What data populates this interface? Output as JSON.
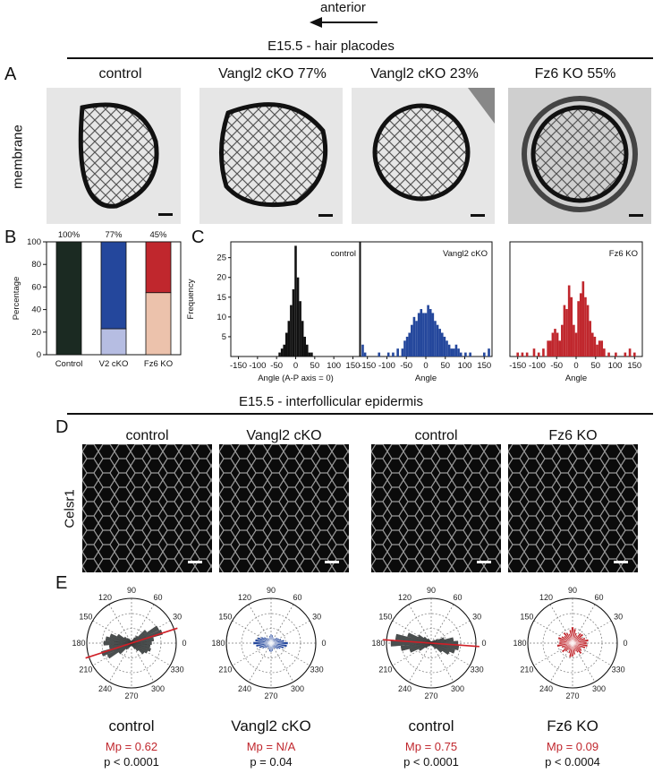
{
  "arrow_label": "anterior",
  "section1_title": "E15.5 - hair placodes",
  "section2_title": "E15.5 - interfollicular epidermis",
  "panel_letters": {
    "A": "A",
    "B": "B",
    "C": "C",
    "D": "D",
    "E": "E"
  },
  "panelA": {
    "row_label": "membrane",
    "titles": [
      "control",
      "Vangl2 cKO 77%",
      "Vangl2 cKO 23%",
      "Fz6 KO 55%"
    ]
  },
  "panelD": {
    "row_label": "Celsr1",
    "titles": [
      "control",
      "Vangl2 cKO",
      "control",
      "Fz6 KO"
    ]
  },
  "panelE": {
    "captions": [
      "control",
      "Vangl2 cKO",
      "control",
      "Fz6 KO"
    ],
    "mp": [
      "Mp = 0.62",
      "Mp = N/A",
      "Mp = 0.75",
      "Mp = 0.09"
    ],
    "p": [
      "p < 0.0001",
      "p = 0.04",
      "p < 0.0001",
      "p < 0.0004"
    ],
    "angle_labels": [
      "90",
      "60",
      "30",
      "0",
      "330",
      "300",
      "270",
      "240",
      "210",
      "180",
      "150",
      "120"
    ]
  },
  "colors": {
    "black": "#1b2a22",
    "blue": "#24479c",
    "light_blue": "#b6bde2",
    "red": "#c0272d",
    "peach": "#ecc2ac",
    "gray_petal": "#4a4f4f",
    "mp_red": "#c0272d"
  },
  "chart_data": [
    {
      "type": "bar",
      "panel": "B",
      "ylabel": "Percentage",
      "ylim": [
        0,
        100
      ],
      "yticks": [
        0,
        20,
        40,
        60,
        80,
        100
      ],
      "categories": [
        "Control",
        "V2 cKO",
        "Fz6 KO"
      ],
      "top_labels": [
        "100%",
        "77%",
        "45%"
      ],
      "stacks": [
        [
          {
            "value": 100,
            "color": "#1b2a22"
          }
        ],
        [
          {
            "value": 23,
            "color": "#b6bde2"
          },
          {
            "value": 77,
            "color": "#24479c"
          }
        ],
        [
          {
            "value": 55,
            "color": "#ecc2ac"
          },
          {
            "value": 45,
            "color": "#c0272d"
          }
        ]
      ]
    },
    {
      "type": "bar",
      "panel": "C",
      "title": "control",
      "ylabel": "Frequency",
      "xlabel": "Angle (A-P axis = 0)",
      "xlim": [
        -170,
        170
      ],
      "ylim": [
        0,
        29
      ],
      "xticks": [
        -150,
        -100,
        -50,
        0,
        50,
        100,
        150
      ],
      "yticks": [
        5,
        10,
        15,
        20,
        25
      ],
      "color": "#111111",
      "bin_width": 6,
      "x": [
        -42,
        -36,
        -30,
        -24,
        -18,
        -12,
        -6,
        0,
        6,
        12,
        18,
        24,
        30,
        36,
        42
      ],
      "values": [
        1,
        2,
        3,
        6,
        9,
        13,
        17,
        28,
        20,
        14,
        9,
        5,
        3,
        1,
        1
      ]
    },
    {
      "type": "bar",
      "panel": "C",
      "title": "Vangl2 cKO",
      "xlabel": "Angle",
      "xlim": [
        -170,
        170
      ],
      "ylim": [
        0,
        29
      ],
      "xticks": [
        -150,
        -100,
        -50,
        0,
        50,
        100,
        150
      ],
      "color": "#24479c",
      "bin_width": 6,
      "x": [
        -162,
        -156,
        -120,
        -96,
        -84,
        -72,
        -60,
        -54,
        -48,
        -42,
        -36,
        -30,
        -24,
        -18,
        -12,
        -6,
        0,
        6,
        12,
        18,
        24,
        30,
        36,
        42,
        48,
        54,
        60,
        66,
        72,
        78,
        84,
        90,
        102,
        114,
        150,
        162
      ],
      "values": [
        3,
        1,
        1,
        1,
        1,
        2,
        2,
        4,
        5,
        6,
        8,
        10,
        9,
        11,
        12,
        11,
        11,
        13,
        12,
        11,
        9,
        8,
        7,
        6,
        5,
        4,
        3,
        2,
        2,
        3,
        2,
        1,
        1,
        1,
        1,
        2
      ]
    },
    {
      "type": "bar",
      "panel": "C",
      "title": "Fz6 KO",
      "xlabel": "Angle",
      "xlim": [
        -170,
        170
      ],
      "ylim": [
        0,
        29
      ],
      "xticks": [
        -150,
        -100,
        -50,
        0,
        50,
        100,
        150
      ],
      "color": "#c0272d",
      "bin_width": 6,
      "x": [
        -150,
        -138,
        -126,
        -108,
        -96,
        -84,
        -72,
        -66,
        -60,
        -54,
        -48,
        -42,
        -36,
        -30,
        -24,
        -18,
        -12,
        -6,
        0,
        6,
        12,
        18,
        24,
        30,
        36,
        42,
        48,
        54,
        60,
        66,
        72,
        84,
        102,
        126,
        138,
        150
      ],
      "values": [
        1,
        1,
        1,
        2,
        1,
        2,
        4,
        4,
        6,
        7,
        6,
        4,
        8,
        13,
        12,
        18,
        15,
        8,
        6,
        14,
        16,
        19,
        15,
        13,
        9,
        6,
        5,
        3,
        4,
        4,
        2,
        1,
        1,
        1,
        2,
        1
      ]
    },
    {
      "type": "polar_rose",
      "panel": "E",
      "caption": "control",
      "color": "#4a4f4f",
      "rmax": 1.0,
      "theta_deg": [
        0,
        10,
        20,
        30,
        40,
        50,
        60,
        70,
        80,
        90,
        100,
        110,
        120,
        130,
        140,
        150,
        160,
        170,
        180,
        190,
        200,
        210,
        220,
        230,
        240,
        250,
        260,
        270,
        280,
        290,
        300,
        310,
        320,
        330,
        340,
        350
      ],
      "r": [
        0.45,
        0.5,
        0.72,
        0.68,
        0.42,
        0.2,
        0.14,
        0.08,
        0.06,
        0.05,
        0.05,
        0.07,
        0.1,
        0.14,
        0.2,
        0.35,
        0.5,
        0.58,
        0.62,
        0.5,
        0.7,
        0.6,
        0.35,
        0.18,
        0.12,
        0.08,
        0.05,
        0.06,
        0.06,
        0.09,
        0.14,
        0.22,
        0.35,
        0.4,
        0.45,
        0.42
      ],
      "mean_angle_deg": 18
    },
    {
      "type": "polar_rose",
      "panel": "E",
      "caption": "Vangl2 cKO",
      "color": "#24479c",
      "rmax": 1.0,
      "theta_deg": [
        0,
        10,
        20,
        30,
        40,
        50,
        60,
        70,
        80,
        90,
        100,
        110,
        120,
        130,
        140,
        150,
        160,
        170,
        180,
        190,
        200,
        210,
        220,
        230,
        240,
        250,
        260,
        270,
        280,
        290,
        300,
        310,
        320,
        330,
        340,
        350
      ],
      "r": [
        0.38,
        0.3,
        0.24,
        0.2,
        0.18,
        0.14,
        0.12,
        0.14,
        0.18,
        0.2,
        0.17,
        0.13,
        0.12,
        0.15,
        0.2,
        0.25,
        0.32,
        0.36,
        0.4,
        0.34,
        0.28,
        0.22,
        0.17,
        0.13,
        0.12,
        0.15,
        0.19,
        0.2,
        0.18,
        0.14,
        0.12,
        0.15,
        0.2,
        0.24,
        0.3,
        0.36
      ],
      "mean_angle_deg": null
    },
    {
      "type": "polar_rose",
      "panel": "E",
      "caption": "control",
      "color": "#4a4f4f",
      "rmax": 1.0,
      "theta_deg": [
        0,
        10,
        20,
        30,
        40,
        50,
        60,
        70,
        80,
        90,
        100,
        110,
        120,
        130,
        140,
        150,
        160,
        170,
        180,
        190,
        200,
        210,
        220,
        230,
        240,
        250,
        260,
        270,
        280,
        290,
        300,
        310,
        320,
        330,
        340,
        350
      ],
      "r": [
        0.6,
        0.5,
        0.3,
        0.16,
        0.1,
        0.07,
        0.05,
        0.04,
        0.04,
        0.04,
        0.04,
        0.05,
        0.08,
        0.12,
        0.2,
        0.32,
        0.55,
        0.8,
        0.9,
        0.68,
        0.5,
        0.3,
        0.16,
        0.09,
        0.06,
        0.04,
        0.04,
        0.04,
        0.05,
        0.06,
        0.1,
        0.16,
        0.3,
        0.45,
        0.55,
        0.62
      ],
      "mean_angle_deg": 176
    },
    {
      "type": "polar_rose",
      "panel": "E",
      "caption": "Fz6 KO",
      "color": "#c0272d",
      "rmax": 1.0,
      "theta_deg": [
        0,
        10,
        20,
        30,
        40,
        50,
        60,
        70,
        80,
        90,
        100,
        110,
        120,
        130,
        140,
        150,
        160,
        170,
        180,
        190,
        200,
        210,
        220,
        230,
        240,
        250,
        260,
        270,
        280,
        290,
        300,
        310,
        320,
        330,
        340,
        350
      ],
      "r": [
        0.32,
        0.36,
        0.3,
        0.24,
        0.3,
        0.28,
        0.2,
        0.24,
        0.32,
        0.36,
        0.3,
        0.22,
        0.26,
        0.3,
        0.24,
        0.28,
        0.34,
        0.3,
        0.3,
        0.35,
        0.26,
        0.22,
        0.3,
        0.24,
        0.18,
        0.24,
        0.32,
        0.3,
        0.26,
        0.2,
        0.24,
        0.3,
        0.26,
        0.22,
        0.3,
        0.34
      ],
      "mean_angle_deg": null
    }
  ]
}
